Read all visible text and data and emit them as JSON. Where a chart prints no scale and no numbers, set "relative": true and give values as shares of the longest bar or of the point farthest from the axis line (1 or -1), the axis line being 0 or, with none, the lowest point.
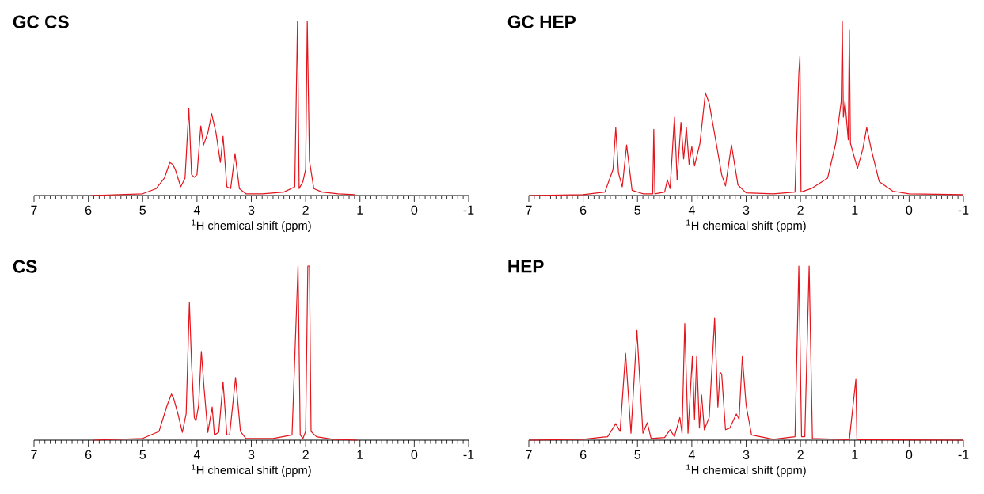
{
  "chart_data": [
    {
      "type": "line",
      "relative": true,
      "title": "GC CS",
      "xlabel": "$^{1}$H chemical shift (ppm)",
      "xlim": [
        7,
        -1
      ],
      "xticks": [
        7,
        6,
        5,
        4,
        3,
        2,
        1,
        0,
        -1
      ],
      "color": "#e3141b",
      "x": [
        5.95,
        5.0,
        4.75,
        4.6,
        4.5,
        4.45,
        4.4,
        4.3,
        4.22,
        4.15,
        4.1,
        4.05,
        4.0,
        3.93,
        3.88,
        3.8,
        3.73,
        3.65,
        3.57,
        3.52,
        3.45,
        3.38,
        3.3,
        3.22,
        3.1,
        2.8,
        2.4,
        2.2,
        2.15,
        2.12,
        2.05,
        2.0,
        1.97,
        1.93,
        1.85,
        1.7,
        1.4,
        1.1
      ],
      "values": [
        0,
        0.01,
        0.04,
        0.1,
        0.19,
        0.18,
        0.15,
        0.05,
        0.1,
        0.5,
        0.12,
        0.105,
        0.12,
        0.4,
        0.29,
        0.36,
        0.47,
        0.36,
        0.19,
        0.34,
        0.05,
        0.04,
        0.24,
        0.04,
        0.01,
        0.01,
        0.02,
        0.05,
        1,
        0.04,
        0.08,
        0.15,
        1,
        0.2,
        0.04,
        0.02,
        0.01,
        0.005
      ]
    },
    {
      "type": "line",
      "relative": true,
      "title": "GC HEP",
      "xlabel": "$^{1}$H chemical shift (ppm)",
      "xlim": [
        7,
        -1
      ],
      "xticks": [
        7,
        6,
        5,
        4,
        3,
        2,
        1,
        0,
        -1
      ],
      "color": "#e3141b",
      "x": [
        7,
        6.0,
        5.6,
        5.45,
        5.4,
        5.35,
        5.28,
        5.2,
        5.1,
        4.9,
        4.72,
        4.7,
        4.68,
        4.5,
        4.45,
        4.4,
        4.32,
        4.27,
        4.2,
        4.15,
        4.1,
        4.05,
        4.0,
        3.95,
        3.85,
        3.75,
        3.68,
        3.55,
        3.45,
        3.38,
        3.27,
        3.15,
        3.0,
        2.5,
        2.1,
        2.03,
        2.01,
        1.99,
        1.8,
        1.5,
        1.35,
        1.25,
        1.23,
        1.21,
        1.18,
        1.12,
        1.1,
        1.08,
        0.95,
        0.85,
        0.78,
        0.7,
        0.55,
        0.3,
        0,
        -1
      ],
      "values": [
        0,
        0.005,
        0.02,
        0.15,
        0.39,
        0.13,
        0.05,
        0.29,
        0.03,
        0.01,
        0.01,
        0.38,
        0.01,
        0.02,
        0.09,
        0.04,
        0.45,
        0.09,
        0.42,
        0.21,
        0.39,
        0.18,
        0.28,
        0.17,
        0.3,
        0.59,
        0.53,
        0.3,
        0.12,
        0.055,
        0.29,
        0.06,
        0.015,
        0.01,
        0.02,
        0.7,
        0.8,
        0.02,
        0.04,
        0.1,
        0.3,
        0.54,
        1,
        0.45,
        0.54,
        0.32,
        0.95,
        0.3,
        0.155,
        0.27,
        0.39,
        0.27,
        0.08,
        0.025,
        0.01,
        0.005
      ]
    },
    {
      "type": "line",
      "relative": true,
      "title": "CS",
      "xlabel": "$^{1}$H chemical shift (ppm)",
      "xlim": [
        7,
        -1
      ],
      "xticks": [
        7,
        6,
        5,
        4,
        3,
        2,
        1,
        0,
        -1
      ],
      "color": "#e3141b",
      "x": [
        5.9,
        5.0,
        4.7,
        4.55,
        4.47,
        4.43,
        4.35,
        4.27,
        4.2,
        4.14,
        4.1,
        4.05,
        4.02,
        3.97,
        3.92,
        3.87,
        3.8,
        3.72,
        3.68,
        3.6,
        3.52,
        3.45,
        3.4,
        3.29,
        3.2,
        3.1,
        2.6,
        2.25,
        2.14,
        2.1,
        2.05,
        2.0,
        1.96,
        1.93,
        1.9,
        1.8,
        1.5,
        1.05
      ],
      "values": [
        0,
        0.01,
        0.05,
        0.2,
        0.265,
        0.24,
        0.15,
        0.045,
        0.15,
        0.79,
        0.44,
        0.13,
        0.11,
        0.2,
        0.51,
        0.3,
        0.045,
        0.19,
        0.03,
        0.045,
        0.335,
        0.03,
        0.03,
        0.36,
        0.05,
        0.01,
        0.01,
        0.03,
        1,
        0.03,
        0.01,
        0.05,
        1,
        1,
        0.05,
        0.02,
        0.005,
        0
      ]
    },
    {
      "type": "line",
      "relative": true,
      "title": "HEP",
      "xlabel": "$^{1}$H chemical shift (ppm)",
      "xlim": [
        7,
        -1
      ],
      "xticks": [
        7,
        6,
        5,
        4,
        3,
        2,
        1,
        0,
        -1
      ],
      "color": "#e3141b",
      "x": [
        7,
        6,
        5.55,
        5.4,
        5.32,
        5.22,
        5.12,
        5.01,
        4.9,
        4.82,
        4.75,
        4.5,
        4.4,
        4.32,
        4.22,
        4.18,
        4.13,
        4.07,
        3.99,
        3.95,
        3.91,
        3.86,
        3.82,
        3.77,
        3.68,
        3.58,
        3.52,
        3.48,
        3.45,
        3.38,
        3.3,
        3.18,
        3.13,
        3.07,
        3.0,
        2.9,
        2.5,
        2.1,
        2.03,
        1.98,
        1.92,
        1.84,
        1.78,
        1.1,
        0.98,
        0.96,
        -1
      ],
      "values": [
        0,
        0.005,
        0.02,
        0.095,
        0.05,
        0.5,
        0.04,
        0.63,
        0.04,
        0.1,
        0.01,
        0.015,
        0.06,
        0.02,
        0.13,
        0.04,
        0.67,
        0.04,
        0.48,
        0.12,
        0.48,
        0.07,
        0.26,
        0.06,
        0.13,
        0.7,
        0.19,
        0.39,
        0.38,
        0.06,
        0.07,
        0.15,
        0.12,
        0.48,
        0.2,
        0.03,
        0.005,
        0.02,
        1,
        0.02,
        0.02,
        1,
        0.01,
        0.003,
        0.35,
        0.003,
        0
      ]
    }
  ]
}
